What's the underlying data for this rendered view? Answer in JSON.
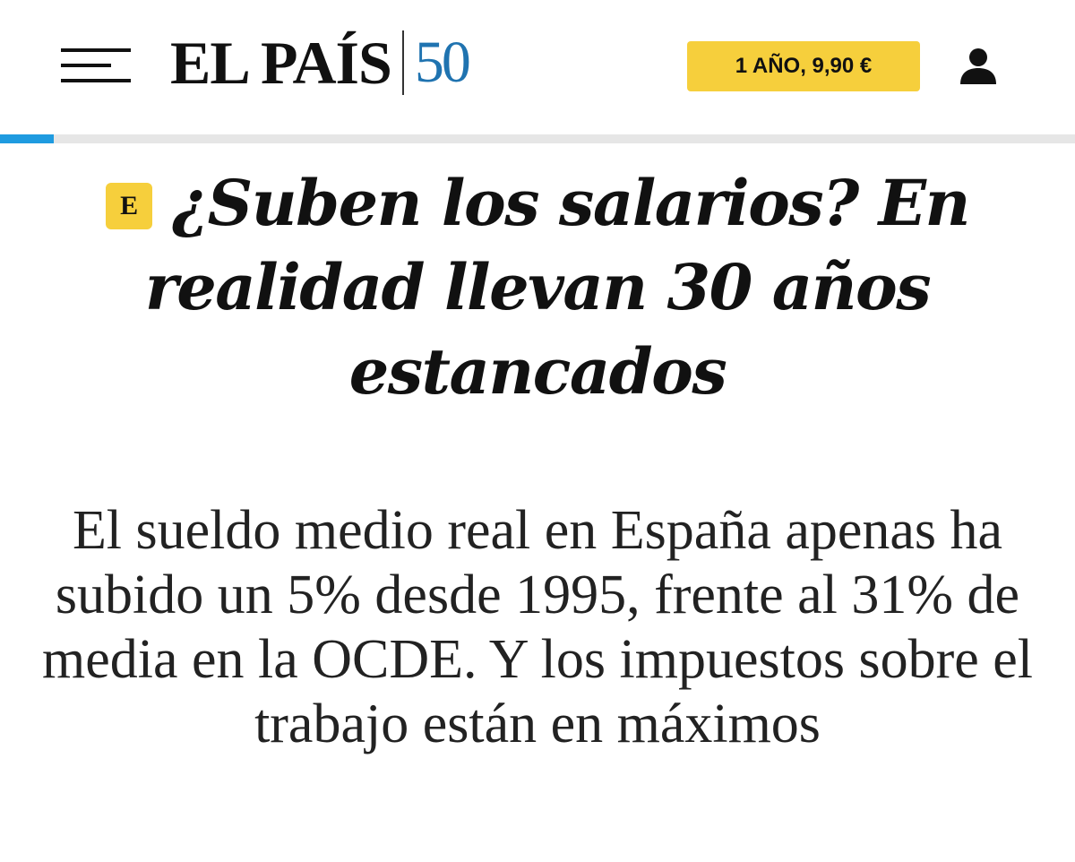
{
  "header": {
    "logo_text": "EL PAÍS",
    "logo_anniversary": "50",
    "subscribe_label": "1 AÑO, 9,90 €",
    "icons": {
      "menu": "menu-icon",
      "user": "user-icon"
    }
  },
  "reading_progress": {
    "fraction": 0.05,
    "color": "#1f9be0"
  },
  "article": {
    "badge": "E",
    "headline": "¿Suben los salarios? En realidad llevan 30 años estancados",
    "subtitle": "El sueldo medio real en España apenas ha subido un 5% desde 1995, frente al 31% de media en la OCDE. Y los impuestos sobre el trabajo están en máximos"
  },
  "colors": {
    "accent_yellow": "#f6cf3c",
    "brand_blue": "#1f73b0",
    "text": "#111111"
  }
}
